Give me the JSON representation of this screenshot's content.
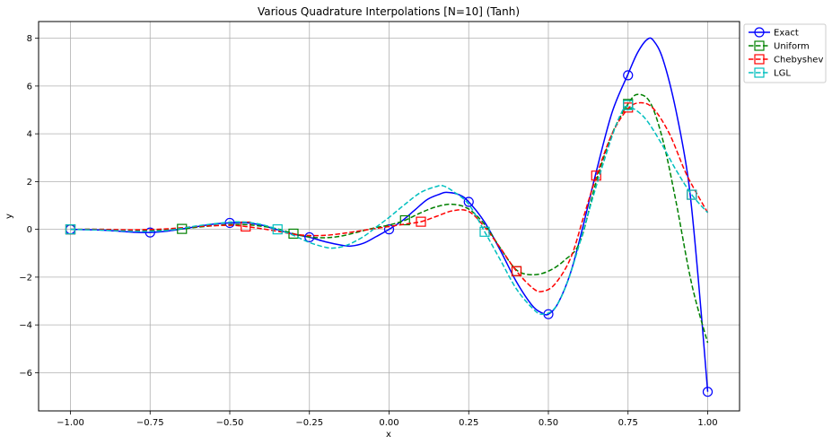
{
  "chart_data": {
    "type": "line",
    "title": "Various Quadrature Interpolations [N=10] (Tanh)",
    "xlabel": "x",
    "ylabel": "y",
    "xlim": [
      -1.1,
      1.1
    ],
    "ylim": [
      -7.6,
      8.7
    ],
    "xticks": [
      -1.0,
      -0.75,
      -0.5,
      -0.25,
      0.0,
      0.25,
      0.5,
      0.75,
      1.0
    ],
    "xtick_labels": [
      "−1.00",
      "−0.75",
      "−0.50",
      "−0.25",
      "0.00",
      "0.25",
      "0.50",
      "0.75",
      "1.00"
    ],
    "yticks": [
      -6,
      -4,
      -2,
      0,
      2,
      4,
      6,
      8
    ],
    "ytick_labels": [
      "−6",
      "−4",
      "−2",
      "0",
      "2",
      "4",
      "6",
      "8"
    ],
    "grid": true,
    "legend_position": "outside-top-right",
    "series": [
      {
        "name": "Exact",
        "color": "#0000ff",
        "dash": "solid",
        "marker": "circle",
        "curve": [
          [
            -1.0,
            0.0
          ],
          [
            -0.9,
            -0.03
          ],
          [
            -0.8,
            -0.12
          ],
          [
            -0.75,
            -0.13
          ],
          [
            -0.7,
            -0.08
          ],
          [
            -0.62,
            0.08
          ],
          [
            -0.55,
            0.22
          ],
          [
            -0.5,
            0.27
          ],
          [
            -0.45,
            0.28
          ],
          [
            -0.4,
            0.18
          ],
          [
            -0.35,
            -0.02
          ],
          [
            -0.3,
            -0.2
          ],
          [
            -0.25,
            -0.33
          ],
          [
            -0.2,
            -0.52
          ],
          [
            -0.15,
            -0.66
          ],
          [
            -0.12,
            -0.7
          ],
          [
            -0.08,
            -0.58
          ],
          [
            -0.04,
            -0.3
          ],
          [
            0.0,
            0.0
          ],
          [
            0.04,
            0.35
          ],
          [
            0.08,
            0.8
          ],
          [
            0.12,
            1.25
          ],
          [
            0.16,
            1.48
          ],
          [
            0.18,
            1.55
          ],
          [
            0.22,
            1.45
          ],
          [
            0.25,
            1.15
          ],
          [
            0.3,
            0.3
          ],
          [
            0.35,
            -0.9
          ],
          [
            0.4,
            -2.2
          ],
          [
            0.45,
            -3.2
          ],
          [
            0.48,
            -3.5
          ],
          [
            0.5,
            -3.55
          ],
          [
            0.53,
            -3.1
          ],
          [
            0.57,
            -1.8
          ],
          [
            0.61,
            0.2
          ],
          [
            0.65,
            2.4
          ],
          [
            0.7,
            4.9
          ],
          [
            0.75,
            6.5
          ],
          [
            0.78,
            7.4
          ],
          [
            0.81,
            7.95
          ],
          [
            0.83,
            7.9
          ],
          [
            0.86,
            7.1
          ],
          [
            0.9,
            5.0
          ],
          [
            0.94,
            2.0
          ],
          [
            0.97,
            -2.0
          ],
          [
            1.0,
            -6.8
          ]
        ],
        "markers": [
          [
            -1.0,
            0.0
          ],
          [
            -0.75,
            -0.13
          ],
          [
            -0.5,
            0.27
          ],
          [
            -0.25,
            -0.33
          ],
          [
            0.0,
            0.0
          ],
          [
            0.25,
            1.15
          ],
          [
            0.5,
            -3.55
          ],
          [
            0.75,
            6.45
          ],
          [
            1.0,
            -6.8
          ]
        ]
      },
      {
        "name": "Uniform",
        "color": "#008000",
        "dash": "dashed",
        "marker": "square",
        "curve": [
          [
            -1.0,
            0.0
          ],
          [
            -0.9,
            0.0
          ],
          [
            -0.8,
            -0.05
          ],
          [
            -0.72,
            -0.03
          ],
          [
            -0.65,
            0.02
          ],
          [
            -0.58,
            0.12
          ],
          [
            -0.5,
            0.2
          ],
          [
            -0.45,
            0.2
          ],
          [
            -0.4,
            0.13
          ],
          [
            -0.35,
            0.02
          ],
          [
            -0.3,
            -0.18
          ],
          [
            -0.25,
            -0.32
          ],
          [
            -0.2,
            -0.35
          ],
          [
            -0.15,
            -0.28
          ],
          [
            -0.1,
            -0.12
          ],
          [
            -0.05,
            0.05
          ],
          [
            0.0,
            0.18
          ],
          [
            0.05,
            0.38
          ],
          [
            0.1,
            0.7
          ],
          [
            0.15,
            0.95
          ],
          [
            0.2,
            1.05
          ],
          [
            0.25,
            0.85
          ],
          [
            0.3,
            0.2
          ],
          [
            0.35,
            -0.8
          ],
          [
            0.4,
            -1.7
          ],
          [
            0.45,
            -1.9
          ],
          [
            0.5,
            -1.75
          ],
          [
            0.55,
            -1.3
          ],
          [
            0.6,
            -0.5
          ],
          [
            0.65,
            2.0
          ],
          [
            0.7,
            4.0
          ],
          [
            0.75,
            5.25
          ],
          [
            0.78,
            5.65
          ],
          [
            0.82,
            5.3
          ],
          [
            0.86,
            3.7
          ],
          [
            0.9,
            1.2
          ],
          [
            0.95,
            -2.3
          ],
          [
            1.0,
            -4.75
          ]
        ],
        "markers": [
          [
            -1.0,
            0.0
          ],
          [
            -0.65,
            0.02
          ],
          [
            -0.3,
            -0.18
          ],
          [
            0.05,
            0.38
          ],
          [
            0.4,
            -1.75
          ],
          [
            0.75,
            5.25
          ]
        ]
      },
      {
        "name": "Chebyshev",
        "color": "#ff0000",
        "dash": "dashed",
        "marker": "square",
        "curve": [
          [
            -1.0,
            0.0
          ],
          [
            -0.9,
            0.0
          ],
          [
            -0.8,
            -0.02
          ],
          [
            -0.7,
            0.02
          ],
          [
            -0.6,
            0.12
          ],
          [
            -0.5,
            0.17
          ],
          [
            -0.45,
            0.12
          ],
          [
            -0.4,
            0.03
          ],
          [
            -0.35,
            -0.08
          ],
          [
            -0.3,
            -0.2
          ],
          [
            -0.25,
            -0.26
          ],
          [
            -0.2,
            -0.25
          ],
          [
            -0.15,
            -0.18
          ],
          [
            -0.1,
            -0.08
          ],
          [
            -0.05,
            0.02
          ],
          [
            0.0,
            0.12
          ],
          [
            0.05,
            0.22
          ],
          [
            0.1,
            0.32
          ],
          [
            0.15,
            0.55
          ],
          [
            0.2,
            0.78
          ],
          [
            0.25,
            0.75
          ],
          [
            0.3,
            0.1
          ],
          [
            0.35,
            -0.8
          ],
          [
            0.4,
            -1.75
          ],
          [
            0.45,
            -2.45
          ],
          [
            0.48,
            -2.6
          ],
          [
            0.52,
            -2.3
          ],
          [
            0.57,
            -1.2
          ],
          [
            0.61,
            0.5
          ],
          [
            0.65,
            2.2
          ],
          [
            0.7,
            4.0
          ],
          [
            0.75,
            5.05
          ],
          [
            0.79,
            5.3
          ],
          [
            0.83,
            5.05
          ],
          [
            0.88,
            4.0
          ],
          [
            0.93,
            2.4
          ],
          [
            0.97,
            1.4
          ],
          [
            1.0,
            0.7
          ]
        ],
        "markers": [
          [
            -1.0,
            0.0
          ],
          [
            -0.45,
            0.12
          ],
          [
            0.1,
            0.32
          ],
          [
            0.4,
            -1.75
          ],
          [
            0.65,
            2.25
          ],
          [
            0.75,
            5.1
          ],
          [
            0.95,
            1.45
          ]
        ]
      },
      {
        "name": "LGL",
        "color": "#00bfbf",
        "dash": "dashed",
        "marker": "square",
        "curve": [
          [
            -1.0,
            0.0
          ],
          [
            -0.9,
            -0.03
          ],
          [
            -0.8,
            -0.08
          ],
          [
            -0.7,
            -0.05
          ],
          [
            -0.6,
            0.15
          ],
          [
            -0.5,
            0.3
          ],
          [
            -0.45,
            0.3
          ],
          [
            -0.4,
            0.2
          ],
          [
            -0.35,
            0.0
          ],
          [
            -0.3,
            -0.25
          ],
          [
            -0.25,
            -0.55
          ],
          [
            -0.2,
            -0.75
          ],
          [
            -0.17,
            -0.78
          ],
          [
            -0.13,
            -0.65
          ],
          [
            -0.08,
            -0.3
          ],
          [
            -0.04,
            0.1
          ],
          [
            0.0,
            0.5
          ],
          [
            0.05,
            1.05
          ],
          [
            0.1,
            1.55
          ],
          [
            0.15,
            1.8
          ],
          [
            0.17,
            1.82
          ],
          [
            0.2,
            1.6
          ],
          [
            0.25,
            1.05
          ],
          [
            0.3,
            -0.1
          ],
          [
            0.35,
            -1.3
          ],
          [
            0.4,
            -2.5
          ],
          [
            0.45,
            -3.3
          ],
          [
            0.48,
            -3.55
          ],
          [
            0.52,
            -3.3
          ],
          [
            0.56,
            -2.2
          ],
          [
            0.6,
            -0.5
          ],
          [
            0.65,
            1.8
          ],
          [
            0.7,
            3.9
          ],
          [
            0.73,
            4.9
          ],
          [
            0.75,
            5.15
          ],
          [
            0.8,
            4.7
          ],
          [
            0.85,
            3.7
          ],
          [
            0.9,
            2.5
          ],
          [
            0.95,
            1.45
          ],
          [
            1.0,
            0.7
          ]
        ],
        "markers": [
          [
            -1.0,
            0.0
          ],
          [
            -0.35,
            0.0
          ],
          [
            0.3,
            -0.1
          ],
          [
            0.75,
            5.2
          ],
          [
            0.95,
            1.45
          ]
        ]
      }
    ]
  }
}
